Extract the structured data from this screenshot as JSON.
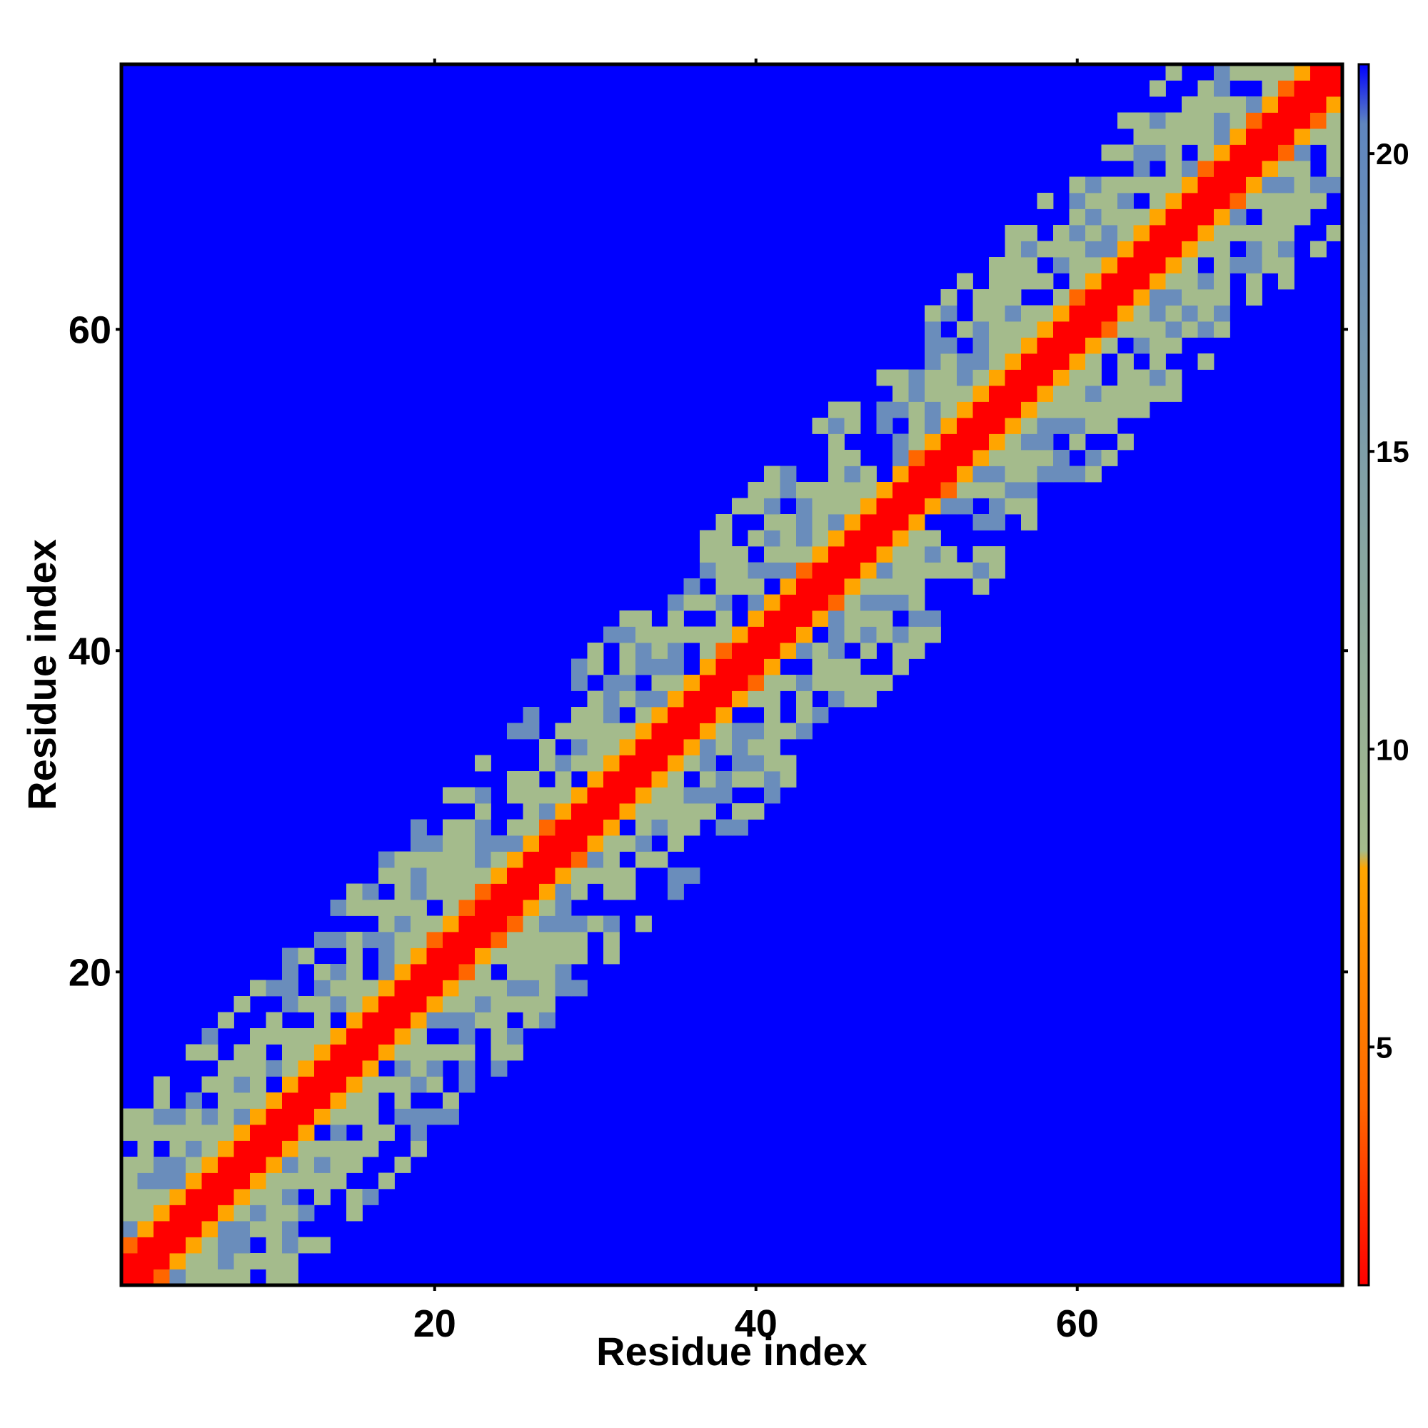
{
  "chart_data": {
    "type": "heatmap",
    "title": "",
    "xlabel": "Residue index",
    "ylabel": "Residue index",
    "xlim": [
      1,
      76
    ],
    "ylim": [
      1,
      76
    ],
    "n_residues": 76,
    "x_ticks": [
      "20",
      "40",
      "60"
    ],
    "y_ticks": [
      "20",
      "40",
      "60"
    ],
    "colorbar": {
      "range": [
        1,
        21.5
      ],
      "ticks": [
        "5",
        "10",
        "15",
        "20"
      ],
      "stops": [
        {
          "value": 1,
          "color": "#ff0000"
        },
        {
          "value": 4,
          "color": "#ff6600"
        },
        {
          "value": 8,
          "color": "#ffa500"
        },
        {
          "value": 8.3,
          "color": "#a4bb8c"
        },
        {
          "value": 20.5,
          "color": "#5f86bf"
        },
        {
          "value": 21.5,
          "color": "#0000ff"
        }
      ]
    },
    "cell_colors": {
      "background": "#0000ff",
      "diagonal": "#ff0000",
      "near": "#ffa500",
      "near_alt": "#ff6600",
      "mid": "#a4bb8c",
      "far": "#6a8dbb"
    },
    "bands": [
      {
        "offset_from": 0,
        "offset_to": 1,
        "min_value": 1,
        "max_value": 4
      },
      {
        "offset_from": 2,
        "offset_to": 2,
        "min_value": 5,
        "max_value": 8
      },
      {
        "offset_from": 3,
        "offset_to": 7,
        "min_value": 9,
        "max_value": 17
      },
      {
        "offset_from": 8,
        "offset_to": 10,
        "min_value": 15,
        "max_value": 21
      }
    ],
    "grid": false,
    "legend": "colorbar-right"
  }
}
